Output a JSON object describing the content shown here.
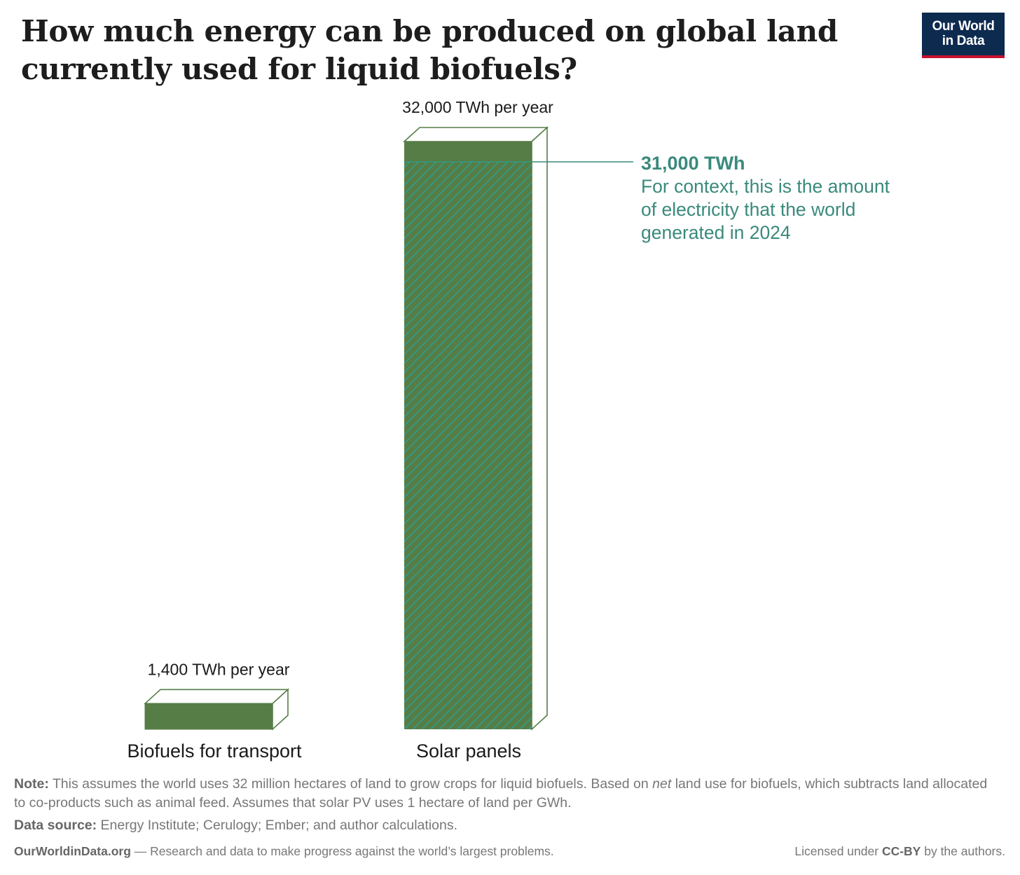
{
  "title": "How much energy can be produced on global land currently used for liquid biofuels?",
  "logo": {
    "line1": "Our World",
    "line2": "in Data"
  },
  "chart_data": {
    "type": "bar",
    "categories": [
      "Biofuels for transport",
      "Solar panels"
    ],
    "values": [
      1400,
      32000
    ],
    "unit": "TWh per year",
    "value_labels": [
      "1,400 TWh per year",
      "32,000 TWh per year"
    ],
    "ylim": [
      0,
      32000
    ],
    "grid": false,
    "bar_color": "#567d46",
    "hatch_color": "#2e9e8f",
    "annotation": {
      "value": 31000,
      "headline": "31,000 TWh",
      "lines": [
        "For context, this is the amount",
        "of electricity that the world",
        "generated in 2024"
      ],
      "color": "#3a8a7c"
    }
  },
  "footer": {
    "note_label": "Note:",
    "note_text_1": " This assumes the world uses 32 million hectares of land to grow crops for liquid biofuels. Based on ",
    "note_italic": "net",
    "note_text_2": " land use for biofuels, which subtracts land allocated to co-products such as animal feed. Assumes that solar PV uses 1 hectare of land per GWh.",
    "source_label": "Data source:",
    "source_text": " Energy Institute; Cerulogy; Ember; and author calculations.",
    "site": "OurWorldinData.org",
    "tagline": " — Research and data to make progress against the world’s largest problems.",
    "license_prefix": "Licensed under ",
    "license_name": "CC-BY",
    "license_suffix": " by the authors."
  }
}
